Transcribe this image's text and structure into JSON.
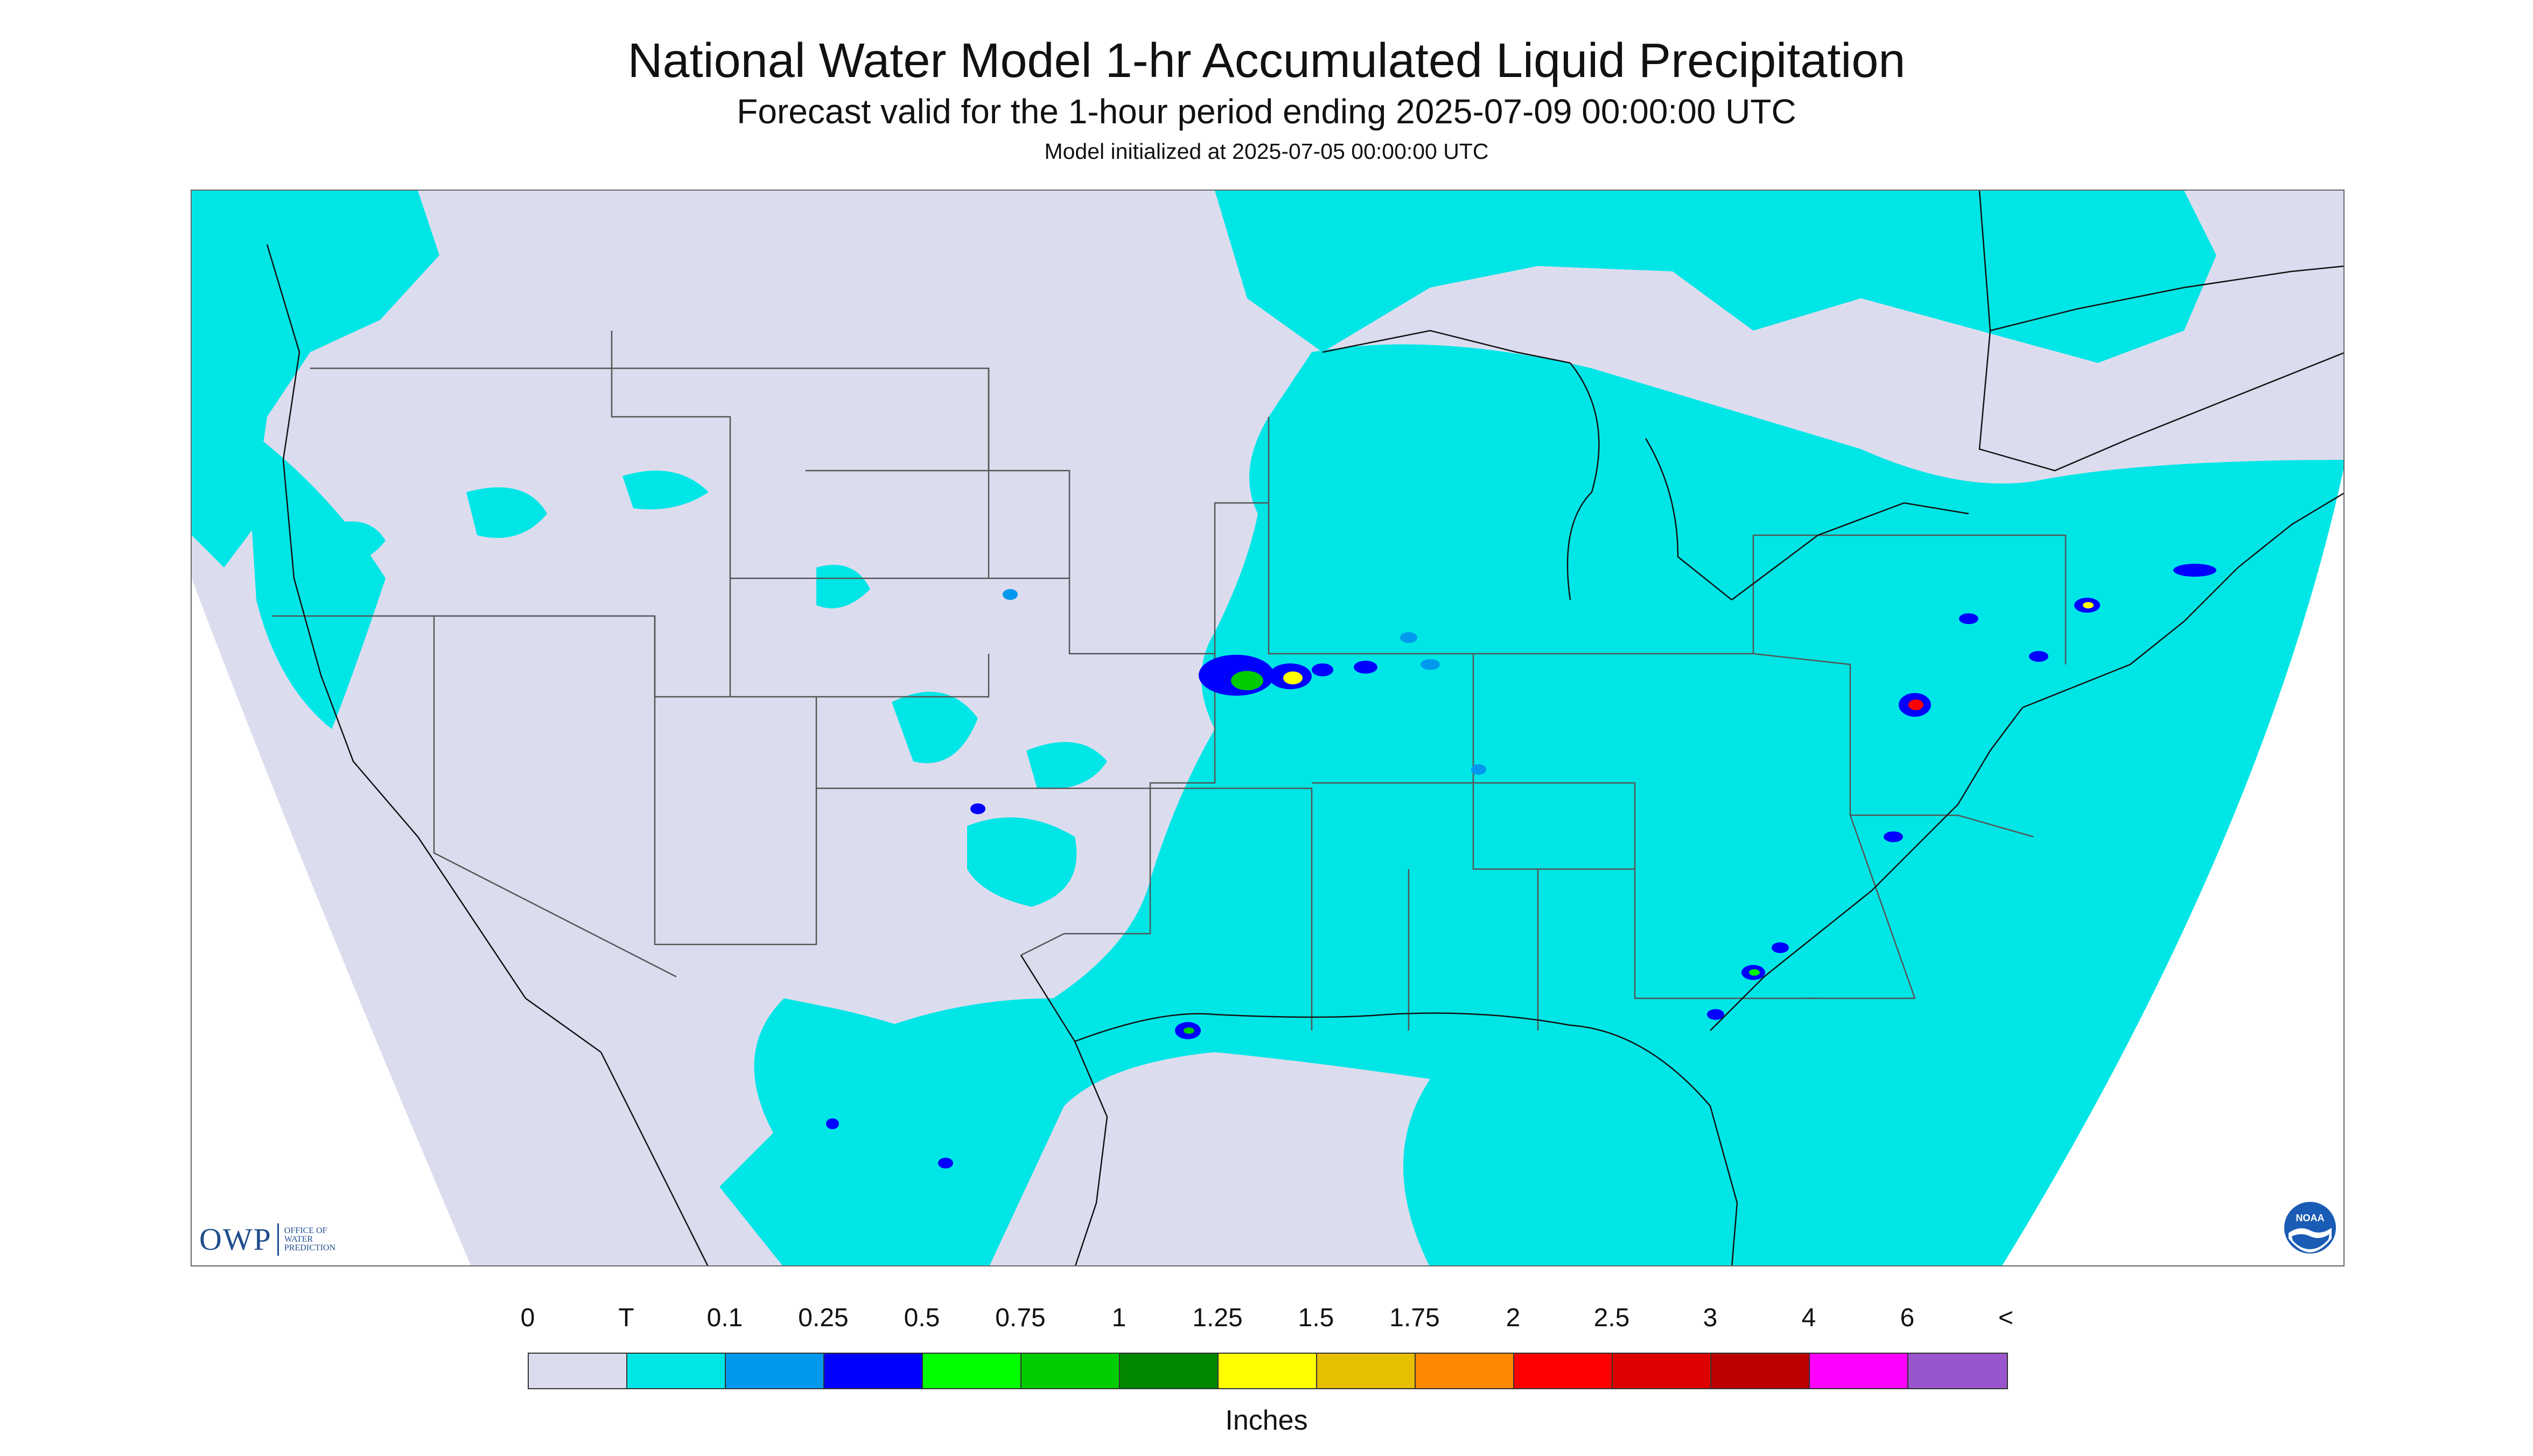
{
  "header": {
    "title": "National Water Model 1-hr Accumulated Liquid Precipitation",
    "subtitle": "Forecast valid for the 1-hour period ending 2025-07-09 00:00:00 UTC",
    "init_line": "Model initialized at 2025-07-05 00:00:00 UTC"
  },
  "map": {
    "domain_color": "#dcdcef",
    "trace_color": "#00e6e6",
    "boundary_color": "#555555",
    "coast_color": "#111111"
  },
  "logos": {
    "owp_mark": "OWP",
    "owp_lines": [
      "OFFICE OF",
      "WATER",
      "PREDICTION"
    ],
    "noaa_text": "NOAA"
  },
  "legend": {
    "labels": [
      "0",
      "T",
      "0.1",
      "0.25",
      "0.5",
      "0.75",
      "1",
      "1.25",
      "1.5",
      "1.75",
      "2",
      "2.5",
      "3",
      "4",
      "6",
      "<"
    ],
    "colors": [
      "#dcdcef",
      "#00e6e6",
      "#0099ee",
      "#0000ff",
      "#00ff00",
      "#00cc00",
      "#008800",
      "#ffff00",
      "#e6bf00",
      "#ff8800",
      "#ff0000",
      "#dd0000",
      "#bb0000",
      "#ff00ff",
      "#9955cc"
    ],
    "units": "Inches"
  }
}
